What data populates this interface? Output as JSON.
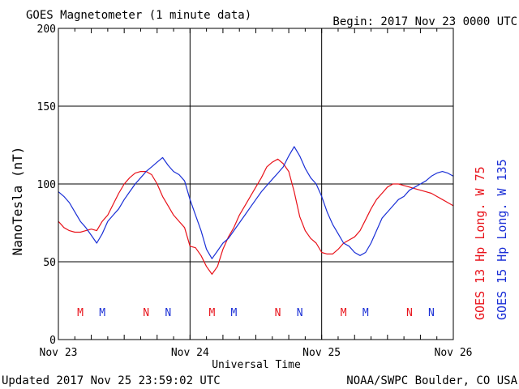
{
  "header": {
    "title": "GOES Magnetometer (1 minute data)",
    "begin": "Begin:  2017 Nov 23 0000 UTC"
  },
  "footer": {
    "updated": "Updated 2017 Nov 25 23:59:02 UTC",
    "credit": "NOAA/SWPC Boulder, CO USA"
  },
  "colors": {
    "goes13": "#e8121a",
    "goes15": "#1a2fd6"
  },
  "chart_data": {
    "type": "line",
    "xlabel": "Universal Time",
    "ylabel": "NanoTesla (nT)",
    "xlim": [
      0,
      72
    ],
    "ylim": [
      0,
      200
    ],
    "x_unit": "hours since 2017 Nov 23 0000 UTC",
    "x_ticks": [
      {
        "x": 0,
        "label": "Nov 23"
      },
      {
        "x": 24,
        "label": "Nov 24"
      },
      {
        "x": 48,
        "label": "Nov 25"
      },
      {
        "x": 72,
        "label": "Nov 26"
      }
    ],
    "y_ticks": [
      0,
      50,
      100,
      150,
      200
    ],
    "grid": true,
    "series": [
      {
        "name": "GOES 13 Hp   Long. W  75",
        "color": "#e8121a",
        "x": [
          0,
          1,
          2,
          3,
          4,
          5,
          6,
          7,
          8,
          9,
          10,
          11,
          12,
          13,
          14,
          15,
          16,
          17,
          18,
          19,
          20,
          21,
          22,
          23,
          24,
          25,
          26,
          27,
          28,
          29,
          30,
          31,
          32,
          33,
          34,
          35,
          36,
          37,
          38,
          39,
          40,
          41,
          42,
          43,
          44,
          45,
          46,
          47,
          48,
          49,
          50,
          51,
          52,
          53,
          54,
          55,
          56,
          57,
          58,
          59,
          60,
          61,
          62,
          63,
          64,
          65,
          66,
          67,
          68,
          69,
          70,
          71,
          72
        ],
        "y": [
          76,
          72,
          70,
          69,
          69,
          70,
          71,
          70,
          76,
          80,
          87,
          94,
          100,
          104,
          107,
          108,
          108,
          106,
          100,
          92,
          86,
          80,
          76,
          72,
          60,
          59,
          54,
          47,
          42,
          47,
          58,
          66,
          72,
          80,
          86,
          92,
          98,
          104,
          111,
          114,
          116,
          113,
          108,
          95,
          79,
          70,
          65,
          62,
          56,
          55,
          55,
          58,
          62,
          64,
          66,
          70,
          77,
          84,
          90,
          94,
          98,
          100,
          100,
          99,
          98,
          97,
          96,
          95,
          94,
          92,
          90,
          88,
          86
        ]
      },
      {
        "name": "GOES 15 Hp   Long. W 135",
        "color": "#1a2fd6",
        "x": [
          0,
          1,
          2,
          3,
          4,
          5,
          6,
          7,
          8,
          9,
          10,
          11,
          12,
          13,
          14,
          15,
          16,
          17,
          18,
          19,
          20,
          21,
          22,
          23,
          24,
          25,
          26,
          27,
          28,
          29,
          30,
          31,
          32,
          33,
          34,
          35,
          36,
          37,
          38,
          39,
          40,
          41,
          42,
          43,
          44,
          45,
          46,
          47,
          48,
          49,
          50,
          51,
          52,
          53,
          54,
          55,
          56,
          57,
          58,
          59,
          60,
          61,
          62,
          63,
          64,
          65,
          66,
          67,
          68,
          69,
          70,
          71,
          72
        ],
        "y": [
          95,
          92,
          88,
          82,
          76,
          72,
          67,
          62,
          68,
          76,
          80,
          84,
          90,
          95,
          100,
          104,
          108,
          111,
          114,
          117,
          112,
          108,
          106,
          102,
          90,
          80,
          70,
          58,
          52,
          57,
          62,
          65,
          70,
          75,
          80,
          85,
          90,
          95,
          99,
          103,
          107,
          111,
          118,
          124,
          118,
          110,
          104,
          100,
          92,
          82,
          74,
          68,
          62,
          60,
          56,
          54,
          56,
          62,
          70,
          78,
          82,
          86,
          90,
          92,
          96,
          98,
          100,
          102,
          105,
          107,
          108,
          107,
          105
        ]
      }
    ],
    "markers": [
      {
        "x": 4,
        "label": "M",
        "series": 0
      },
      {
        "x": 8,
        "label": "M",
        "series": 1
      },
      {
        "x": 16,
        "label": "N",
        "series": 0
      },
      {
        "x": 20,
        "label": "N",
        "series": 1
      },
      {
        "x": 28,
        "label": "M",
        "series": 0
      },
      {
        "x": 32,
        "label": "M",
        "series": 1
      },
      {
        "x": 40,
        "label": "N",
        "series": 0
      },
      {
        "x": 44,
        "label": "N",
        "series": 1
      },
      {
        "x": 52,
        "label": "M",
        "series": 0
      },
      {
        "x": 56,
        "label": "M",
        "series": 1
      },
      {
        "x": 64,
        "label": "N",
        "series": 0
      },
      {
        "x": 68,
        "label": "N",
        "series": 1
      }
    ]
  }
}
